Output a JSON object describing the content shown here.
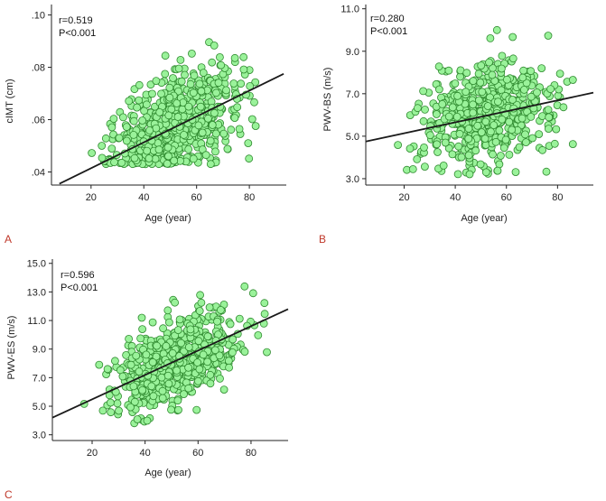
{
  "colors": {
    "point_fill": "#9af29a",
    "point_stroke": "#2f8a2f",
    "fit_line": "#1a1a1a",
    "axis": "#222222",
    "panel_letter": "#c0392b"
  },
  "chart_data": [
    {
      "type": "scatter",
      "panel": "A",
      "xlabel": "Age (year)",
      "ylabel": "cIMT (cm)",
      "stats": [
        "r=0.519",
        "P<0.001"
      ],
      "xlim": [
        5,
        94
      ],
      "ylim": [
        0.035,
        0.104
      ],
      "xticks": [
        {
          "value": 20,
          "label": "20"
        },
        {
          "value": 40,
          "label": "40"
        },
        {
          "value": 60,
          "label": "60"
        },
        {
          "value": 80,
          "label": "80"
        }
      ],
      "yticks": [
        {
          "value": 0.04,
          "label": ".04"
        },
        {
          "value": 0.06,
          "label": ".06"
        },
        {
          "value": 0.08,
          "label": ".08"
        },
        {
          "value": 0.1,
          "label": ".10"
        }
      ],
      "fit": {
        "x": [
          8,
          93
        ],
        "y": [
          0.0355,
          0.0775
        ]
      },
      "scatter_model": {
        "n": 640,
        "seed": 11,
        "x_mean": 52,
        "x_sd": 12,
        "x_min": 17,
        "x_max": 86,
        "slope": 0.00049,
        "intercept": 0.0316,
        "noise_sd": 0.0098,
        "y_min": 0.043,
        "y_max": 0.102
      }
    },
    {
      "type": "scatter",
      "panel": "B",
      "xlabel": "Age (year)",
      "ylabel": "PWV-BS (m/s)",
      "stats": [
        "r=0.280",
        "P<0.001"
      ],
      "xlim": [
        5,
        94
      ],
      "ylim": [
        2.7,
        11.2
      ],
      "xticks": [
        {
          "value": 20,
          "label": "20"
        },
        {
          "value": 40,
          "label": "40"
        },
        {
          "value": 60,
          "label": "60"
        },
        {
          "value": 80,
          "label": "80"
        }
      ],
      "yticks": [
        {
          "value": 3.0,
          "label": "3.0"
        },
        {
          "value": 5.0,
          "label": "5.0"
        },
        {
          "value": 7.0,
          "label": "7.0"
        },
        {
          "value": 9.0,
          "label": "9.0"
        },
        {
          "value": 11.0,
          "label": "11.0"
        }
      ],
      "fit": {
        "x": [
          5,
          94
        ],
        "y": [
          4.75,
          7.05
        ]
      },
      "scatter_model": {
        "n": 600,
        "seed": 23,
        "x_mean": 52,
        "x_sd": 12,
        "x_min": 17,
        "x_max": 86,
        "slope": 0.0259,
        "intercept": 4.62,
        "noise_sd": 1.15,
        "y_min": 3.2,
        "y_max": 10.7
      }
    },
    {
      "type": "scatter",
      "panel": "C",
      "xlabel": "Age (year)",
      "ylabel": "PWV-ES (m/s)",
      "stats": [
        "r=0.596",
        "P<0.001"
      ],
      "xlim": [
        5,
        94
      ],
      "ylim": [
        2.6,
        15.3
      ],
      "xticks": [
        {
          "value": 20,
          "label": "20"
        },
        {
          "value": 40,
          "label": "40"
        },
        {
          "value": 60,
          "label": "60"
        },
        {
          "value": 80,
          "label": "80"
        }
      ],
      "yticks": [
        {
          "value": 3.0,
          "label": "3.0"
        },
        {
          "value": 5.0,
          "label": "5.0"
        },
        {
          "value": 7.0,
          "label": "7.0"
        },
        {
          "value": 9.0,
          "label": "9.0"
        },
        {
          "value": 11.0,
          "label": "11.0"
        },
        {
          "value": 13.0,
          "label": "13.0"
        },
        {
          "value": 15.0,
          "label": "15.0"
        }
      ],
      "fit": {
        "x": [
          5,
          94
        ],
        "y": [
          4.2,
          11.8
        ]
      },
      "scatter_model": {
        "n": 620,
        "seed": 37,
        "x_mean": 52,
        "x_sd": 12,
        "x_min": 17,
        "x_max": 86,
        "slope": 0.0854,
        "intercept": 3.77,
        "noise_sd": 1.45,
        "y_min": 3.8,
        "y_max": 14.2
      }
    }
  ]
}
